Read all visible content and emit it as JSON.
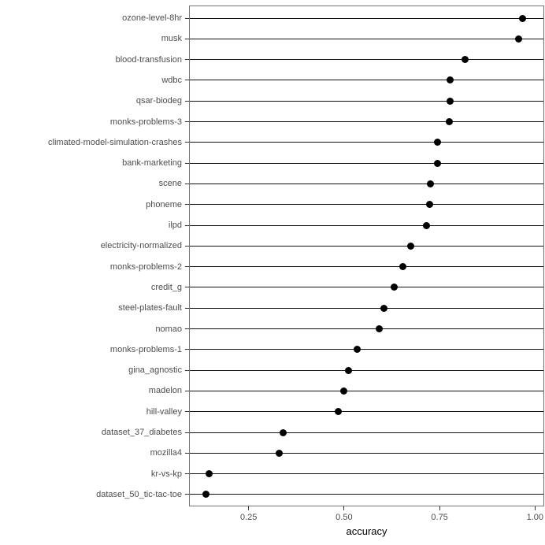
{
  "chart_data": {
    "type": "scatter",
    "subtype": "horizontal-dot-plot",
    "title": "",
    "xlabel": "accuracy",
    "ylabel": "",
    "categories": [
      "ozone-level-8hr",
      "musk",
      "blood-transfusion",
      "wdbc",
      "qsar-biodeg",
      "monks-problems-3",
      "climated-model-simulation-crashes",
      "bank-marketing",
      "scene",
      "phoneme",
      "ilpd",
      "electricity-normalized",
      "monks-problems-2",
      "credit_g",
      "steel-plates-fault",
      "nomao",
      "monks-problems-1",
      "gina_agnostic",
      "madelon",
      "hill-valley",
      "dataset_37_diabetes",
      "mozilla4",
      "kr-vs-kp",
      "dataset_50_tic-tac-toe"
    ],
    "values": [
      0.967,
      0.958,
      0.816,
      0.777,
      0.777,
      0.776,
      0.745,
      0.744,
      0.727,
      0.725,
      0.716,
      0.675,
      0.653,
      0.632,
      0.604,
      0.593,
      0.534,
      0.512,
      0.5,
      0.484,
      0.341,
      0.331,
      0.147,
      0.138
    ],
    "x_ticks": [
      0.25,
      0.5,
      0.75,
      1.0
    ],
    "x_tick_labels": [
      "0.25",
      "0.50",
      "0.75",
      "1.00"
    ],
    "xlim": [
      0.096,
      1.022
    ],
    "grid": "horizontal row lines only, no vertical gridlines",
    "legend": "none",
    "colors": {
      "dot": "#000000",
      "row_line": "#111111",
      "panel_border": "#737373",
      "tick_mark": "#333333",
      "tick_label_text": "#4d4d4d",
      "axis_title_text": "#000000",
      "background": "#ffffff"
    }
  }
}
